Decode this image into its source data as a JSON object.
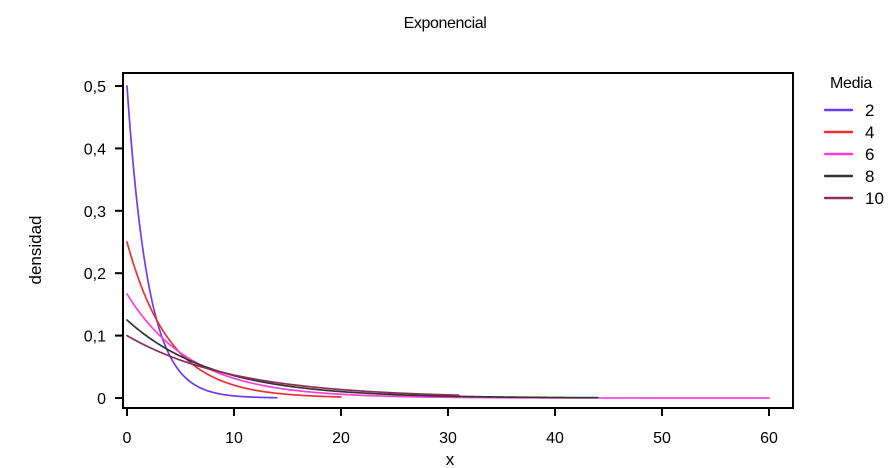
{
  "chart_data": {
    "type": "line",
    "title": "Exponencial",
    "xlabel": "x",
    "ylabel": "densidad",
    "xlim": [
      0,
      60
    ],
    "ylim": [
      0,
      0.5
    ],
    "x_ticks": [
      0,
      10,
      20,
      30,
      40,
      50,
      60
    ],
    "x_tick_labels": [
      "0",
      "10",
      "20",
      "30",
      "40",
      "50",
      "60"
    ],
    "y_ticks": [
      0,
      0.1,
      0.2,
      0.3,
      0.4,
      0.5
    ],
    "y_tick_labels": [
      "0",
      "0,1",
      "0,2",
      "0,3",
      "0,4",
      "0,5"
    ],
    "grid": false,
    "legend_title": "Media",
    "legend_position": "right",
    "series": [
      {
        "name": "2",
        "mean": 2,
        "color": "#6a3cf5",
        "x_end": 14
      },
      {
        "name": "4",
        "mean": 4,
        "color": "#ee2f2f",
        "x_end": 20
      },
      {
        "name": "6",
        "mean": 6,
        "color": "#ff3ddc",
        "x_end": 60
      },
      {
        "name": "8",
        "mean": 8,
        "color": "#333333",
        "x_end": 44
      },
      {
        "name": "10",
        "mean": 10,
        "color": "#8c2e57",
        "x_end": 31
      }
    ]
  }
}
